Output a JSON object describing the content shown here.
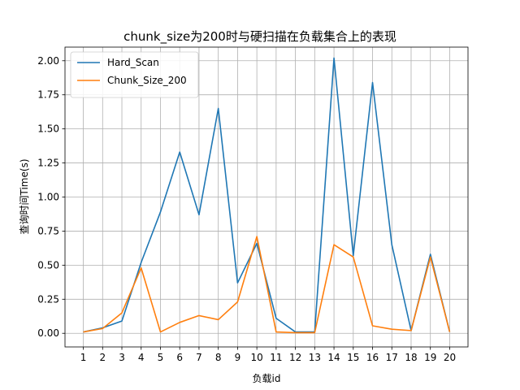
{
  "chart_data": {
    "type": "line",
    "title": "chunk_size为200时与硬扫描在负载集合上的表现",
    "xlabel": "负载id",
    "ylabel": "查询时间Time(s)",
    "x": [
      1,
      2,
      3,
      4,
      5,
      6,
      7,
      8,
      9,
      10,
      11,
      12,
      13,
      14,
      15,
      16,
      17,
      18,
      19,
      20
    ],
    "x_ticks": [
      "1",
      "2",
      "3",
      "4",
      "5",
      "6",
      "7",
      "8",
      "9",
      "10",
      "11",
      "12",
      "13",
      "14",
      "15",
      "16",
      "17",
      "18",
      "19",
      "20"
    ],
    "y_ticks": [
      "0.00",
      "0.25",
      "0.50",
      "0.75",
      "1.00",
      "1.25",
      "1.50",
      "1.75",
      "2.00"
    ],
    "xlim": [
      0.05,
      20.95
    ],
    "ylim": [
      -0.1,
      2.1
    ],
    "grid": true,
    "legend_position": "top-left",
    "series": [
      {
        "name": "Hard_Scan",
        "color": "#1f77b4",
        "values": [
          0.01,
          0.04,
          0.09,
          0.52,
          0.89,
          1.33,
          0.87,
          1.65,
          0.37,
          0.66,
          0.11,
          0.01,
          0.01,
          2.02,
          0.57,
          1.84,
          0.65,
          0.02,
          0.58,
          0.01
        ]
      },
      {
        "name": "Chunk_Size_200",
        "color": "#ff7f0e",
        "values": [
          0.01,
          0.035,
          0.15,
          0.48,
          0.01,
          0.08,
          0.13,
          0.1,
          0.23,
          0.71,
          0.01,
          0.005,
          0.005,
          0.65,
          0.56,
          0.055,
          0.03,
          0.02,
          0.56,
          0.01
        ]
      }
    ]
  }
}
